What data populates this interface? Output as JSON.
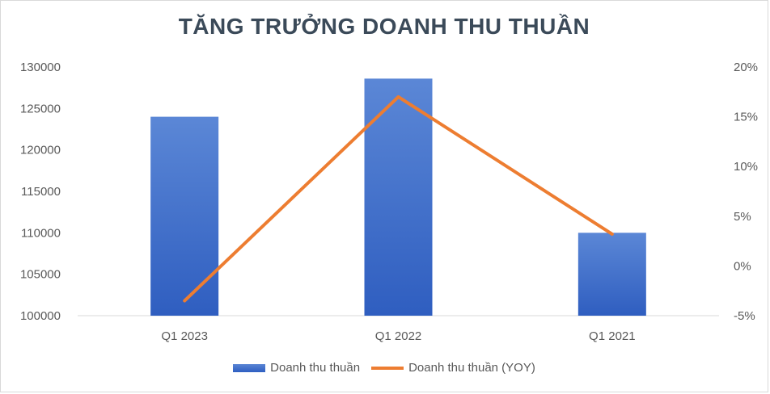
{
  "chart_data": {
    "type": "bar",
    "title": "TĂNG TRƯỞNG DOANH THU THUẦN",
    "categories": [
      "Q1 2023",
      "Q1 2022",
      "Q1 2021"
    ],
    "series": [
      {
        "name": "Doanh thu thuần",
        "type": "bar",
        "axis": "left",
        "values": [
          124000,
          128600,
          110000
        ],
        "color": "#4472c4"
      },
      {
        "name": "Doanh thu thuần (YOY)",
        "type": "line",
        "axis": "right",
        "values": [
          -3.5,
          17,
          3.2
        ],
        "color": "#ed7d31"
      }
    ],
    "y_left": {
      "min": 100000,
      "max": 130000,
      "ticks": [
        "100000",
        "105000",
        "110000",
        "115000",
        "120000",
        "125000",
        "130000"
      ]
    },
    "y_right": {
      "min": -5,
      "max": 20,
      "ticks": [
        "-5%",
        "0%",
        "5%",
        "10%",
        "15%",
        "20%"
      ]
    },
    "grid": false,
    "legend_position": "bottom"
  }
}
